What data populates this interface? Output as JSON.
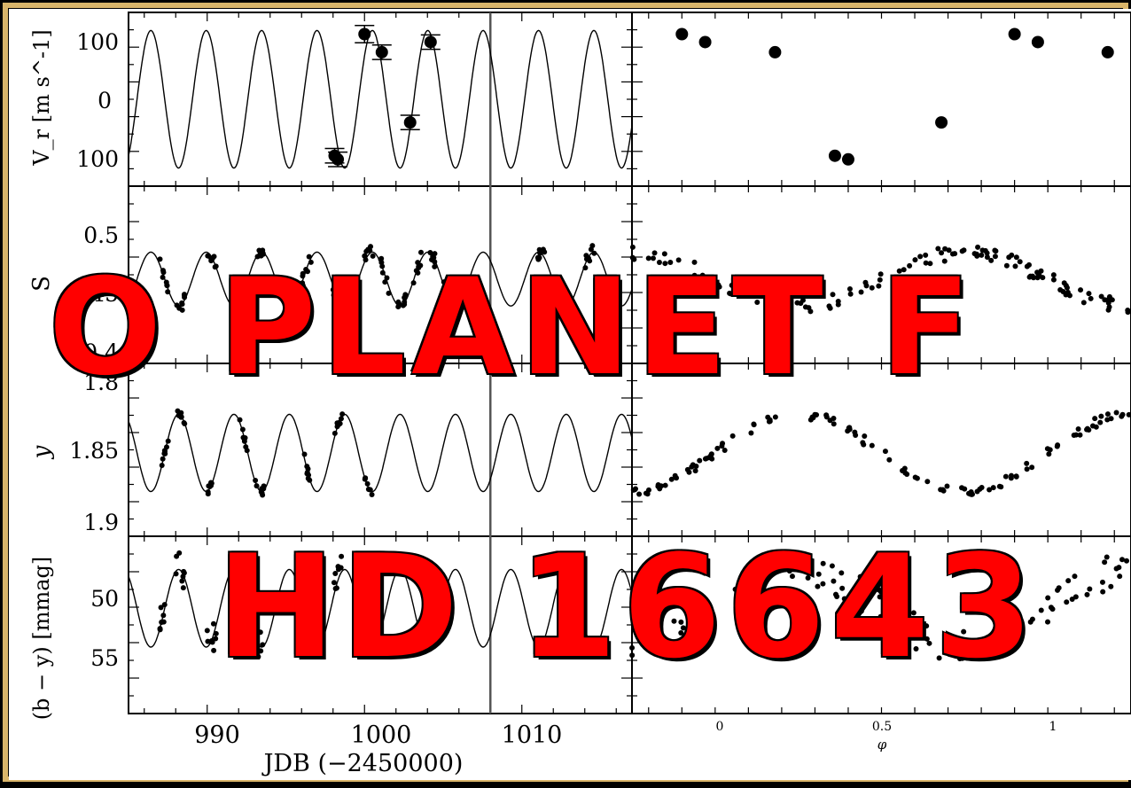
{
  "page": {
    "border_color": "#d9b56a",
    "overlay_color": "#ff0000",
    "overlay_line1": "O PLANET F",
    "overlay_line2": "HD 16643"
  },
  "chart_data": [
    {
      "type": "scatter",
      "panel": "radial-velocity-vs-time",
      "ylabel": "V_r [m s^-1]",
      "yticks": [
        "100",
        "0",
        "100"
      ],
      "ylim": [
        -120,
        120
      ],
      "xlim": [
        985,
        1017
      ],
      "xlabel": "JDB (−2450000)",
      "xticks": [
        "990",
        "1000",
        "1010"
      ],
      "model": {
        "amplitude": 95,
        "period": 3.52,
        "mean": 0
      },
      "series": [
        {
          "x": [
            998.1,
            998.3,
            1000.0,
            1001.1,
            1002.9,
            1004.2
          ],
          "y": [
            -78,
            -83,
            90,
            65,
            -32,
            79
          ],
          "yerr": [
            10,
            10,
            12,
            10,
            10,
            10
          ]
        }
      ]
    },
    {
      "type": "scatter",
      "panel": "radial-velocity-vs-phase",
      "xlim": [
        -0.25,
        1.25
      ],
      "xticks": [
        "0",
        "0.5",
        "1"
      ],
      "xlabel": "φ",
      "series": [
        {
          "x": [
            -0.1,
            -0.03,
            0.18,
            0.36,
            0.4,
            0.68,
            0.9,
            0.97,
            1.18
          ],
          "y": [
            90,
            79,
            65,
            -78,
            -83,
            -32,
            90,
            79,
            65
          ]
        }
      ]
    },
    {
      "type": "scatter",
      "panel": "S-index-vs-time",
      "ylabel": "S",
      "yticks": [
        "0.5",
        "0.45",
        "0.4"
      ],
      "ylim": [
        0.39,
        0.535
      ],
      "model": {
        "amplitude": 0.022,
        "period": 3.52,
        "mean": 0.459
      }
    },
    {
      "type": "scatter",
      "panel": "y-magnitude-vs-time",
      "ylabel": "y",
      "yticks": [
        "1.8",
        "1.85",
        "1.9"
      ],
      "ylim": [
        1.794,
        1.906
      ],
      "model": {
        "amplitude": 0.025,
        "period": 3.52,
        "mean": 1.852
      }
    },
    {
      "type": "scatter",
      "panel": "b-y-color-vs-time",
      "ylabel": "(b − y) [mmag]",
      "yticks": [
        "50",
        "55"
      ],
      "ylim": [
        46,
        62
      ],
      "model": {
        "amplitude": 3.5,
        "period": 3.52,
        "mean": 52.5
      }
    }
  ]
}
